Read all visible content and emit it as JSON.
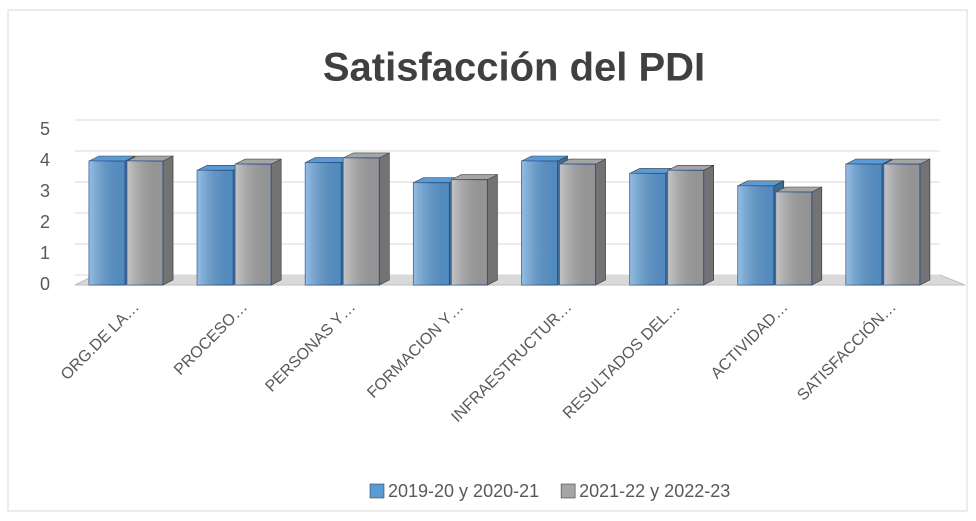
{
  "chart_data": {
    "type": "bar3d",
    "title": "Satisfacción del PDI",
    "categories": [
      "ORG.DE LA…",
      "PROCESO…",
      "PERSONAS Y…",
      "FORMACION Y…",
      "INFRAESTRUCTUR…",
      "RESULTADOS DEL…",
      "ACTIVIDAD…",
      "SATISFACCIÓN…"
    ],
    "series": [
      {
        "name": "2019-20 y 2020-21",
        "color": "#5b9bd5",
        "values": [
          4.0,
          3.7,
          3.95,
          3.3,
          4.0,
          3.6,
          3.2,
          3.9
        ]
      },
      {
        "name": "2021-22 y 2022-23",
        "color": "#a5a5a5",
        "values": [
          4.0,
          3.9,
          4.1,
          3.4,
          3.9,
          3.7,
          3.0,
          3.9
        ]
      }
    ],
    "ylim": [
      0,
      5
    ],
    "yticks": [
      0,
      1,
      2,
      3,
      4,
      5
    ],
    "grid": true,
    "legend": "bottom"
  }
}
